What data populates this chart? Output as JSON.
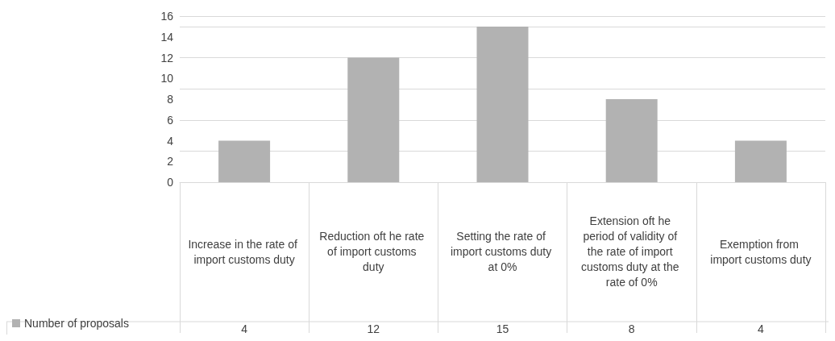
{
  "chart_data": {
    "type": "bar",
    "categories": [
      "Increase in the rate of import customs duty",
      "Reduction oft he rate of import customs duty",
      "Setting the rate of import customs duty at 0%",
      "Extension oft he period of validity of the rate of import customs duty at the rate of 0%",
      "Exemption from import customs duty"
    ],
    "series": [
      {
        "name": "Number of proposals",
        "color": "#b2b2b2",
        "values": [
          4,
          12,
          15,
          8,
          4
        ]
      }
    ],
    "ylim": [
      0,
      16
    ],
    "yticks": [
      0,
      2,
      4,
      6,
      8,
      10,
      12,
      14,
      16
    ],
    "grid": "y",
    "legend": "bottom left",
    "data_labels": true
  }
}
